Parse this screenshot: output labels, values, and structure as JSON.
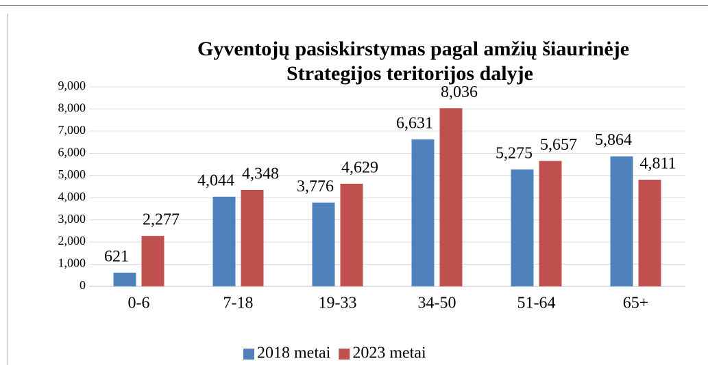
{
  "chart_data": {
    "type": "bar",
    "title": [
      "Gyventojų pasiskirstymas pagal amžių  šiaurinėje",
      "Strategijos teritorijos dalyje"
    ],
    "categories": [
      "0-6",
      "7-18",
      "19-33",
      "34-50",
      "51-64",
      "65+"
    ],
    "series": [
      {
        "name": "2018 metai",
        "color": "#4f81bd",
        "values": [
          621,
          4044,
          3776,
          6631,
          5275,
          5864
        ],
        "value_labels": [
          "621",
          "4,044",
          "3,776",
          "6,631",
          "5,275",
          "5,864"
        ]
      },
      {
        "name": "2023 metai",
        "color": "#c0504d",
        "values": [
          2277,
          4348,
          4629,
          8036,
          5657,
          4811
        ],
        "value_labels": [
          "2,277",
          "4,348",
          "4,629",
          "8,036",
          "5,657",
          "4,811"
        ]
      }
    ],
    "ylim": [
      0,
      9000
    ],
    "yticks": [
      0,
      {
        "value": 1000,
        "label": "1,000"
      },
      {
        "value": 2000,
        "label": "2,000"
      },
      {
        "value": 3000,
        "label": "3,000"
      },
      {
        "value": 4000,
        "label": "4,000"
      },
      {
        "value": 5000,
        "label": "5,000"
      },
      {
        "value": 6000,
        "label": "6,000"
      },
      {
        "value": 7000,
        "label": "7,000"
      },
      {
        "value": 8000,
        "label": "8,000"
      },
      {
        "value": 9000,
        "label": "9,000"
      }
    ],
    "grid": true,
    "legend": "bottom"
  }
}
